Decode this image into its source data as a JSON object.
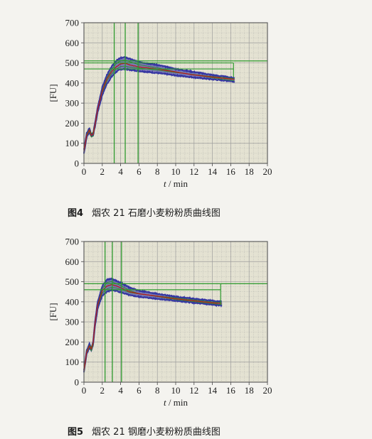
{
  "chart_data": [
    {
      "type": "line",
      "caption_number": "图4",
      "caption_text": "烟农 21 石磨小麦粉粉质曲线图",
      "ylabel": "[FU]",
      "xlabel_var": "t",
      "xlabel_unit": "/ min",
      "xlim": [
        0,
        20
      ],
      "ylim": [
        0,
        700
      ],
      "xticks": [
        "0",
        "2",
        "4",
        "6",
        "8",
        "10",
        "12",
        "14",
        "16",
        "18",
        "20"
      ],
      "yticks": [
        "0",
        "100",
        "200",
        "300",
        "400",
        "500",
        "600",
        "700"
      ],
      "grid": true,
      "colors": {
        "band": "#3535a2",
        "mid": "#b02020",
        "env": "#2d8a2d",
        "marker": "#2e9a2e",
        "grid": "#9c9c9c"
      },
      "markers": {
        "vertical": [
          3.3,
          4.5,
          5.9
        ],
        "horizontal": [
          470,
          500,
          510
        ],
        "horizontal_right_end": 16.3,
        "right_drop": {
          "x": 16.3,
          "y_top": 500,
          "y_bottom": 430
        }
      },
      "series": [
        {
          "role": "upper",
          "x": [
            0,
            0.3,
            0.6,
            0.8,
            1.0,
            1.2,
            1.5,
            2.0,
            2.5,
            3.0,
            3.5,
            4.0,
            4.5,
            5.0,
            6.0,
            8.0,
            10.0,
            12.0,
            14.0,
            16.4
          ],
          "values": [
            70,
            150,
            175,
            145,
            150,
            200,
            280,
            380,
            440,
            480,
            510,
            525,
            528,
            520,
            505,
            490,
            470,
            455,
            440,
            425
          ]
        },
        {
          "role": "middle",
          "x": [
            0,
            0.3,
            0.6,
            0.8,
            1.0,
            1.2,
            1.5,
            2.0,
            2.5,
            3.0,
            3.5,
            4.0,
            4.5,
            5.0,
            6.0,
            8.0,
            10.0,
            12.0,
            14.0,
            16.4
          ],
          "values": [
            60,
            140,
            165,
            140,
            145,
            190,
            270,
            360,
            420,
            455,
            480,
            495,
            498,
            490,
            480,
            470,
            455,
            440,
            430,
            418
          ]
        },
        {
          "role": "lower",
          "x": [
            0,
            0.3,
            0.6,
            0.8,
            1.0,
            1.2,
            1.5,
            2.0,
            2.5,
            3.0,
            3.5,
            4.0,
            4.5,
            5.0,
            6.0,
            8.0,
            10.0,
            12.0,
            14.0,
            16.4
          ],
          "values": [
            50,
            130,
            155,
            135,
            140,
            180,
            255,
            340,
            395,
            430,
            455,
            468,
            470,
            465,
            460,
            450,
            438,
            428,
            418,
            408
          ]
        }
      ]
    },
    {
      "type": "line",
      "caption_number": "图5",
      "caption_text": "烟农 21 钢磨小麦粉粉质曲线图",
      "ylabel": "[FU]",
      "xlabel_var": "t",
      "xlabel_unit": "/ min",
      "xlim": [
        0,
        20
      ],
      "ylim": [
        0,
        700
      ],
      "xticks": [
        "0",
        "2",
        "4",
        "6",
        "8",
        "10",
        "12",
        "14",
        "16",
        "18",
        "20"
      ],
      "yticks": [
        "0",
        "100",
        "200",
        "300",
        "400",
        "500",
        "600",
        "700"
      ],
      "grid": true,
      "colors": {
        "band": "#3535a2",
        "mid": "#b02020",
        "env": "#2d8a2d",
        "marker": "#2e9a2e",
        "grid": "#9c9c9c"
      },
      "markers": {
        "vertical": [
          2.3,
          3.1,
          4.1
        ],
        "horizontal": [
          460,
          490
        ],
        "horizontal_right_end": 14.9,
        "right_drop": {
          "x": 14.9,
          "y_top": 490,
          "y_bottom": 385
        }
      },
      "series": [
        {
          "role": "upper",
          "x": [
            0,
            0.3,
            0.6,
            0.8,
            1.0,
            1.2,
            1.5,
            2.0,
            2.5,
            3.0,
            3.5,
            4.0,
            5.0,
            6.0,
            8.0,
            10.0,
            12.0,
            14.0,
            15.0
          ],
          "values": [
            60,
            160,
            190,
            170,
            200,
            300,
            400,
            480,
            510,
            515,
            505,
            495,
            470,
            455,
            440,
            425,
            415,
            405,
            400
          ]
        },
        {
          "role": "middle",
          "x": [
            0,
            0.3,
            0.6,
            0.8,
            1.0,
            1.2,
            1.5,
            2.0,
            2.5,
            3.0,
            3.5,
            4.0,
            5.0,
            6.0,
            8.0,
            10.0,
            12.0,
            14.0,
            15.0
          ],
          "values": [
            55,
            150,
            180,
            165,
            195,
            290,
            385,
            455,
            478,
            485,
            480,
            470,
            450,
            440,
            428,
            415,
            405,
            395,
            392
          ]
        },
        {
          "role": "lower",
          "x": [
            0,
            0.3,
            0.6,
            0.8,
            1.0,
            1.2,
            1.5,
            2.0,
            2.5,
            3.0,
            3.5,
            4.0,
            5.0,
            6.0,
            8.0,
            10.0,
            12.0,
            14.0,
            15.0
          ],
          "values": [
            50,
            140,
            170,
            160,
            185,
            275,
            365,
            430,
            450,
            458,
            455,
            448,
            432,
            425,
            415,
            405,
            395,
            385,
            382
          ]
        }
      ]
    }
  ]
}
